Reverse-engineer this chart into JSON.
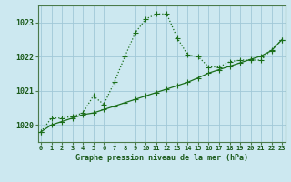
{
  "line1_x": [
    0,
    1,
    2,
    3,
    4,
    5,
    6,
    7,
    8,
    9,
    10,
    11,
    12,
    13,
    14,
    15,
    16,
    17,
    18,
    19,
    20,
    21,
    22,
    23
  ],
  "line1_y": [
    1019.8,
    1020.2,
    1020.2,
    1020.25,
    1020.35,
    1020.85,
    1020.6,
    1021.25,
    1022.0,
    1022.7,
    1023.1,
    1023.25,
    1023.25,
    1022.55,
    1022.05,
    1022.0,
    1021.7,
    1021.7,
    1021.85,
    1021.9,
    1021.9,
    1021.9,
    1022.2,
    1022.5
  ],
  "line2_x": [
    0,
    1,
    2,
    3,
    4,
    5,
    6,
    7,
    8,
    9,
    10,
    11,
    12,
    13,
    14,
    15,
    16,
    17,
    18,
    19,
    20,
    21,
    22,
    23
  ],
  "line2_y": [
    1019.8,
    1020.0,
    1020.1,
    1020.2,
    1020.3,
    1020.35,
    1020.45,
    1020.55,
    1020.65,
    1020.75,
    1020.85,
    1020.95,
    1021.05,
    1021.15,
    1021.25,
    1021.38,
    1021.52,
    1021.62,
    1021.72,
    1021.82,
    1021.92,
    1022.02,
    1022.18,
    1022.5
  ],
  "line_color": "#1a6e1a",
  "bg_color": "#cce8f0",
  "grid_color": "#a0c8d8",
  "spine_color": "#4a7a4a",
  "xlabel": "Graphe pression niveau de la mer (hPa)",
  "xlabel_color": "#1a5a1a",
  "ylabel_ticks": [
    1020,
    1021,
    1022,
    1023
  ],
  "xtick_labels": [
    "0",
    "1",
    "2",
    "3",
    "4",
    "5",
    "6",
    "7",
    "8",
    "9",
    "10",
    "11",
    "12",
    "13",
    "14",
    "15",
    "16",
    "17",
    "18",
    "19",
    "20",
    "21",
    "22",
    "23"
  ],
  "ylim": [
    1019.5,
    1023.5
  ],
  "xlim": [
    -0.3,
    23.3
  ],
  "markersize": 3.0,
  "linewidth": 0.9
}
